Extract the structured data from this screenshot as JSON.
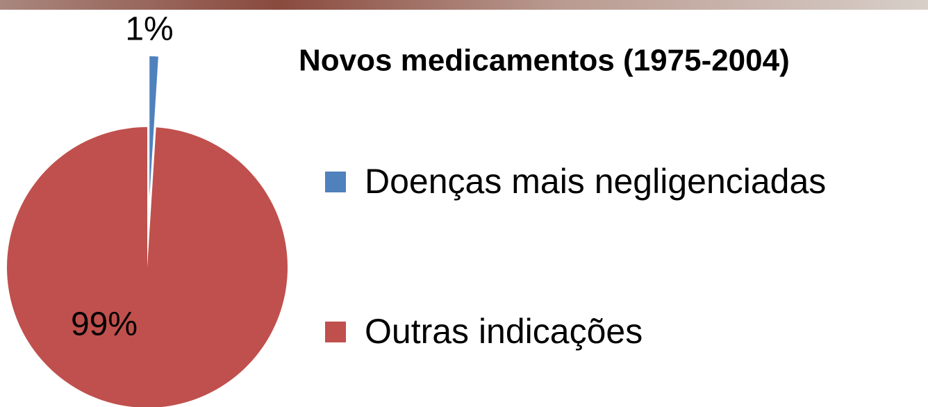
{
  "chart_data": {
    "type": "pie",
    "title": "Novos medicamentos (1975-2004)",
    "categories": [
      "Doenças mais negligenciadas",
      "Outras indicações"
    ],
    "values": [
      1,
      99
    ],
    "value_labels": [
      "1%",
      "99%"
    ],
    "colors": [
      "#4f81bd",
      "#c0504d"
    ]
  }
}
